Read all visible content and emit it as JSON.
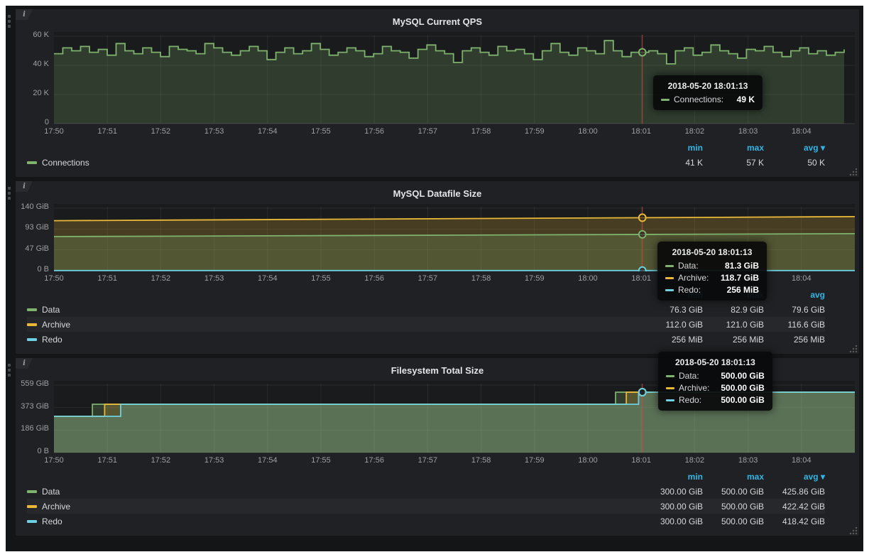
{
  "colors": {
    "green": "#7eb26d",
    "yellow": "#eab839",
    "blue": "#6ed0e0",
    "legend_header_blue": "#33b5e5",
    "crosshair_red": "#cc4444",
    "panel_bg": "#1f2124",
    "dashboard_bg": "#141517"
  },
  "icons": {
    "info": "i",
    "sort_caret": "▾"
  },
  "panels": [
    {
      "title": "MySQL Current QPS",
      "y_ticks": [
        "60 K",
        "40 K",
        "20 K",
        "0"
      ],
      "x_ticks": [
        "17:50",
        "17:51",
        "17:52",
        "17:53",
        "17:54",
        "17:55",
        "17:56",
        "17:57",
        "17:58",
        "17:59",
        "18:00",
        "18:01",
        "18:02",
        "18:03",
        "18:04"
      ],
      "legend": {
        "headers": [
          "min",
          "max",
          "avg"
        ],
        "sorted_by": "avg",
        "series": [
          {
            "name": "Connections",
            "color": "#7eb26d",
            "min": "41 K",
            "max": "57 K",
            "avg": "50 K"
          }
        ]
      },
      "tooltip": {
        "time": "2018-05-20 18:01:13",
        "rows": [
          {
            "name": "Connections:",
            "value": "49 K",
            "color": "#7eb26d"
          }
        ]
      }
    },
    {
      "title": "MySQL Datafile Size",
      "y_ticks": [
        "140 GiB",
        "93 GiB",
        "47 GiB",
        "0 B"
      ],
      "x_ticks": [
        "17:50",
        "17:51",
        "17:52",
        "17:53",
        "17:54",
        "17:55",
        "17:56",
        "17:57",
        "17:58",
        "17:59",
        "18:00",
        "18:01",
        "18:02",
        "18:03",
        "18:04"
      ],
      "legend": {
        "headers": [
          "min",
          "max",
          "avg"
        ],
        "sorted_by": null,
        "series": [
          {
            "name": "Data",
            "color": "#7eb26d",
            "min": "76.3 GiB",
            "max": "82.9 GiB",
            "avg": "79.6 GiB"
          },
          {
            "name": "Archive",
            "color": "#eab839",
            "min": "112.0 GiB",
            "max": "121.0 GiB",
            "avg": "116.6 GiB"
          },
          {
            "name": "Redo",
            "color": "#6ed0e0",
            "min": "256 MiB",
            "max": "256 MiB",
            "avg": "256 MiB"
          }
        ]
      },
      "tooltip": {
        "time": "2018-05-20 18:01:13",
        "rows": [
          {
            "name": "Data:",
            "value": "81.3 GiB",
            "color": "#7eb26d"
          },
          {
            "name": "Archive:",
            "value": "118.7 GiB",
            "color": "#eab839"
          },
          {
            "name": "Redo:",
            "value": "256 MiB",
            "color": "#6ed0e0"
          }
        ]
      }
    },
    {
      "title": "Filesystem Total Size",
      "y_ticks": [
        "559 GiB",
        "373 GiB",
        "186 GiB",
        "0 B"
      ],
      "x_ticks": [
        "17:50",
        "17:51",
        "17:52",
        "17:53",
        "17:54",
        "17:55",
        "17:56",
        "17:57",
        "17:58",
        "17:59",
        "18:00",
        "18:01",
        "18:02",
        "18:03",
        "18:04"
      ],
      "legend": {
        "headers": [
          "min",
          "max",
          "avg"
        ],
        "sorted_by": "avg",
        "series": [
          {
            "name": "Data",
            "color": "#7eb26d",
            "min": "300.00 GiB",
            "max": "500.00 GiB",
            "avg": "425.86 GiB"
          },
          {
            "name": "Archive",
            "color": "#eab839",
            "min": "300.00 GiB",
            "max": "500.00 GiB",
            "avg": "422.42 GiB"
          },
          {
            "name": "Redo",
            "color": "#6ed0e0",
            "min": "300.00 GiB",
            "max": "500.00 GiB",
            "avg": "418.42 GiB"
          }
        ]
      },
      "tooltip": {
        "time": "2018-05-20 18:01:13",
        "rows": [
          {
            "name": "Data:",
            "value": "500.00 GiB",
            "color": "#7eb26d"
          },
          {
            "name": "Archive:",
            "value": "500.00 GiB",
            "color": "#eab839"
          },
          {
            "name": "Redo:",
            "value": "500.00 GiB",
            "color": "#6ed0e0"
          }
        ]
      }
    }
  ],
  "chart_data": [
    {
      "type": "line",
      "title": "MySQL Current QPS",
      "x_ticks": [
        "17:50",
        "17:51",
        "17:52",
        "17:53",
        "17:54",
        "17:55",
        "17:56",
        "17:57",
        "17:58",
        "17:59",
        "18:00",
        "18:01",
        "18:02",
        "18:03",
        "18:04"
      ],
      "x_range_minutes": [
        0,
        15
      ],
      "ylim": [
        0,
        60
      ],
      "y_unit": "K",
      "y_tick_values": [
        60,
        40,
        20,
        0
      ],
      "grid": true,
      "legend_position": "bottom",
      "series": [
        {
          "name": "Connections",
          "color": "#7eb26d",
          "interp": "step",
          "x_end": 14.8,
          "values": [
            48,
            52,
            50,
            53,
            49,
            51,
            47,
            55,
            50,
            48,
            52,
            49,
            46,
            53,
            51,
            50,
            48,
            55,
            52,
            49,
            47,
            50,
            53,
            50,
            44,
            49,
            52,
            48,
            50,
            55,
            51,
            47,
            49,
            52,
            50,
            46,
            48,
            53,
            50,
            49,
            45,
            51,
            54,
            50,
            48,
            42,
            50,
            52,
            49,
            47,
            53,
            50,
            51,
            48,
            44,
            50,
            55,
            49,
            47,
            52,
            50,
            48,
            57,
            50,
            46,
            49,
            49,
            50,
            48,
            41,
            50,
            52,
            47,
            49,
            54,
            50,
            48,
            45,
            51,
            50,
            53,
            49,
            46,
            50,
            52,
            48,
            50,
            47,
            49,
            51
          ]
        }
      ],
      "stats": {
        "Connections": {
          "min": 41,
          "max": 57,
          "avg": 50
        }
      },
      "hover": {
        "x_minutes": 11.02,
        "time": "2018-05-20 18:01:13",
        "values": {
          "Connections": 49
        }
      }
    },
    {
      "type": "line",
      "title": "MySQL Datafile Size",
      "x_ticks": [
        "17:50",
        "17:51",
        "17:52",
        "17:53",
        "17:54",
        "17:55",
        "17:56",
        "17:57",
        "17:58",
        "17:59",
        "18:00",
        "18:01",
        "18:02",
        "18:03",
        "18:04"
      ],
      "x_range_minutes": [
        0,
        15
      ],
      "ylim": [
        0,
        140
      ],
      "y_unit": "GiB",
      "y_tick_values": [
        140,
        93,
        47,
        0
      ],
      "grid": true,
      "legend_position": "bottom",
      "series": [
        {
          "name": "Archive",
          "color": "#eab839",
          "interp": "linear",
          "points": [
            [
              0,
              112.0
            ],
            [
              15,
              121.0
            ]
          ]
        },
        {
          "name": "Data",
          "color": "#7eb26d",
          "interp": "linear",
          "points": [
            [
              0,
              76.3
            ],
            [
              15,
              82.9
            ]
          ]
        },
        {
          "name": "Redo",
          "color": "#6ed0e0",
          "interp": "linear",
          "points": [
            [
              0,
              0.25
            ],
            [
              15,
              0.25
            ]
          ]
        }
      ],
      "stats": {
        "Data": {
          "min": 76.3,
          "max": 82.9,
          "avg": 79.6
        },
        "Archive": {
          "min": 112.0,
          "max": 121.0,
          "avg": 116.6
        },
        "Redo": {
          "min": 0.25,
          "max": 0.25,
          "avg": 0.25
        }
      },
      "hover": {
        "x_minutes": 11.02,
        "time": "2018-05-20 18:01:13",
        "values": {
          "Data": 81.3,
          "Archive": 118.7,
          "Redo": 0.25
        }
      }
    },
    {
      "type": "line",
      "title": "Filesystem Total Size",
      "x_ticks": [
        "17:50",
        "17:51",
        "17:52",
        "17:53",
        "17:54",
        "17:55",
        "17:56",
        "17:57",
        "17:58",
        "17:59",
        "18:00",
        "18:01",
        "18:02",
        "18:03",
        "18:04"
      ],
      "x_range_minutes": [
        0,
        15
      ],
      "ylim": [
        0,
        559
      ],
      "y_unit": "GiB",
      "y_tick_values": [
        559,
        373,
        186,
        0
      ],
      "grid": true,
      "legend_position": "bottom",
      "series": [
        {
          "name": "Data",
          "color": "#7eb26d",
          "interp": "linear",
          "points": [
            [
              0,
              300
            ],
            [
              0.72,
              300
            ],
            [
              0.72,
              400
            ],
            [
              10.52,
              400
            ],
            [
              10.52,
              500
            ],
            [
              15,
              500
            ]
          ]
        },
        {
          "name": "Archive",
          "color": "#eab839",
          "interp": "linear",
          "points": [
            [
              0,
              300
            ],
            [
              0.95,
              300
            ],
            [
              0.95,
              400
            ],
            [
              10.72,
              400
            ],
            [
              10.72,
              500
            ],
            [
              15,
              500
            ]
          ]
        },
        {
          "name": "Redo",
          "color": "#6ed0e0",
          "interp": "linear",
          "points": [
            [
              0,
              300
            ],
            [
              1.25,
              300
            ],
            [
              1.25,
              400
            ],
            [
              10.95,
              400
            ],
            [
              10.95,
              500
            ],
            [
              15,
              500
            ]
          ]
        }
      ],
      "stats": {
        "Data": {
          "min": 300.0,
          "max": 500.0,
          "avg": 425.86
        },
        "Archive": {
          "min": 300.0,
          "max": 500.0,
          "avg": 422.42
        },
        "Redo": {
          "min": 300.0,
          "max": 500.0,
          "avg": 418.42
        }
      },
      "hover": {
        "x_minutes": 11.02,
        "time": "2018-05-20 18:01:13",
        "values": {
          "Data": 500,
          "Archive": 500,
          "Redo": 500
        }
      }
    }
  ]
}
